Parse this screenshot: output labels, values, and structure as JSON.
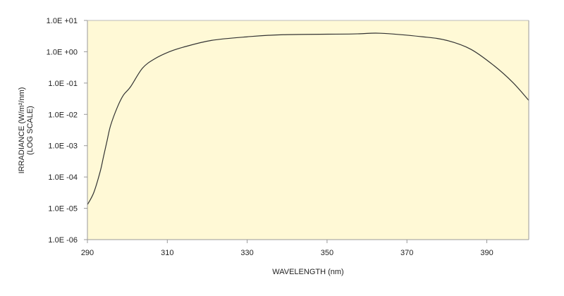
{
  "chart_data": {
    "type": "line",
    "title": "",
    "xlabel": "WAVELENGTH (nm)",
    "ylabel": "IRRADIANCE (W/m²/nm)",
    "ylabel_sub": "(LOG SCALE)",
    "x_scale": "linear",
    "y_scale": "log",
    "xlim": [
      290,
      400.5
    ],
    "ylim": [
      1e-06,
      10
    ],
    "x_ticks": [
      290,
      310,
      330,
      350,
      370,
      390
    ],
    "x_tick_labels": [
      "290",
      "310",
      "330",
      "350",
      "370",
      "390"
    ],
    "y_ticks": [
      10,
      1,
      0.1,
      0.01,
      0.001,
      0.0001,
      1e-05,
      1e-06
    ],
    "y_tick_labels": [
      "1.0E +01",
      "1.0E +00",
      "1.0E -01",
      "1.0E -02",
      "1.0E -03",
      "1.0E -04",
      "1.0E -05",
      "1.0E -06"
    ],
    "grid": false,
    "legend": "none",
    "colors": {
      "plot_background": "#fff9d6",
      "line": "#333333",
      "axis": "#999999"
    },
    "series": [
      {
        "x": [
          290,
          291.6,
          293.2,
          294.0,
          294.9,
          295.8,
          297.5,
          299.0,
          300.8,
          303.8,
          306.9,
          310.5,
          314,
          321,
          330,
          339,
          356.4,
          363.4,
          374,
          380,
          386,
          391.8,
          396.5,
          400.5
        ],
        "y": [
          1.3e-05,
          3.2e-05,
          0.00015,
          0.00043,
          0.0014,
          0.0044,
          0.017,
          0.041,
          0.076,
          0.3,
          0.6,
          1.0,
          1.4,
          2.3,
          3.0,
          3.5,
          3.7,
          3.9,
          3.0,
          2.3,
          1.2,
          0.36,
          0.105,
          0.028
        ]
      }
    ]
  }
}
